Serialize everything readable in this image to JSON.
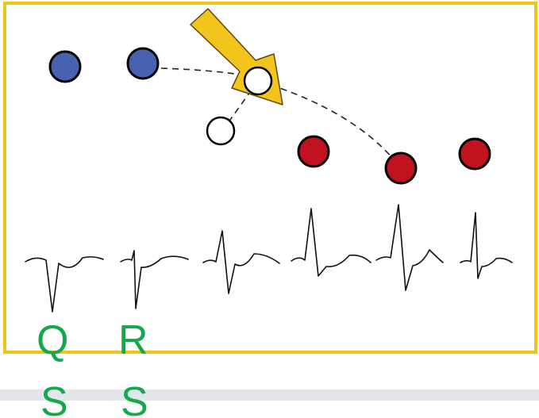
{
  "labels": {
    "col1": {
      "top": "Q",
      "bottom": "S"
    },
    "col2": {
      "top": "R",
      "bottom": "S"
    }
  },
  "colors": {
    "frame": "#f0c419",
    "arrow": "#f2c41c",
    "blue_dot": "#4862b0",
    "red_dot": "#c1121f",
    "open_dot": "#ffffff",
    "label_green": "#13a84a",
    "footer_band": "#e4e5ea"
  },
  "icons": {
    "arrow": "yellow-arrow-icon",
    "blue": "blue-circle-icon",
    "red": "red-circle-icon",
    "open": "open-circle-icon"
  }
}
